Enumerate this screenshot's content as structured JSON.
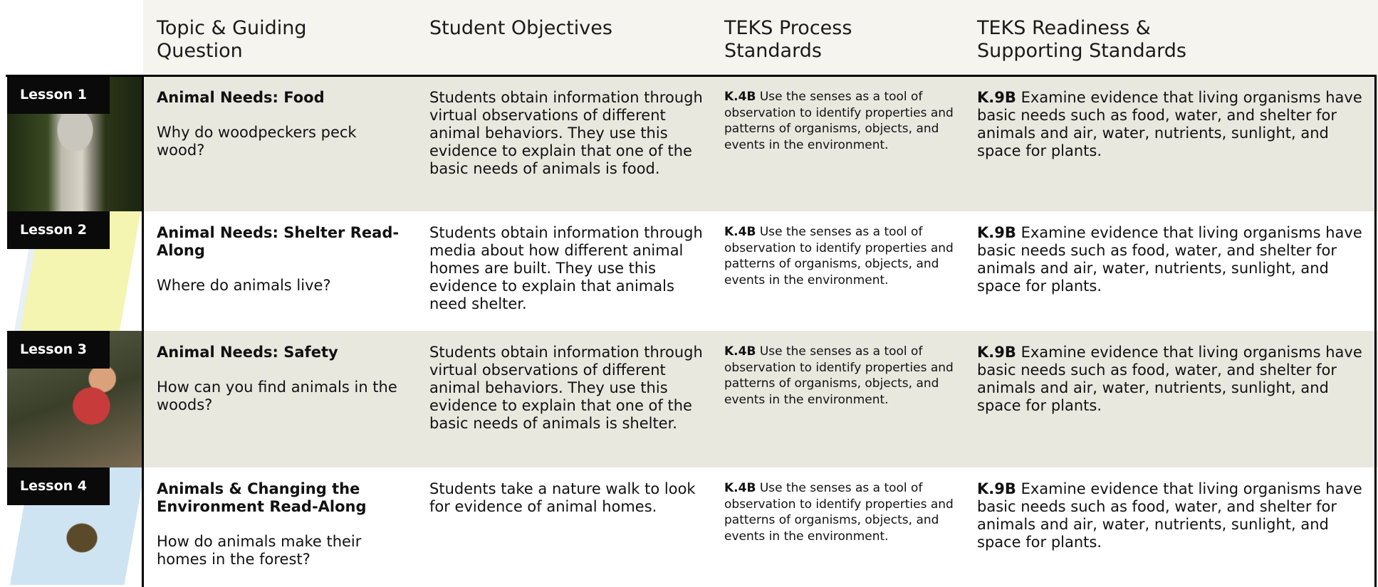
{
  "header": {
    "columns": [
      "Topic & Guiding Question",
      "Student Objectives",
      "TEKS Process Standards",
      "TEKS Readiness & Supporting Standards"
    ]
  },
  "rows": [
    {
      "lesson": "Lesson 1",
      "title": "Animal Needs: Food",
      "question": "Why do woodpeckers peck wood?",
      "objectives": "Students obtain information through virtual observations of different animal behaviors. They use this evidence to explain that one of the basic needs of animals is food.",
      "process_code": "K.4B",
      "process_text": "Use the senses as a tool of observation to identify properties and patterns of organisms, objects, and events in the environment.",
      "readiness_code": "K.9B",
      "readiness_text": "Examine evidence that living organisms have basic needs such as food, water, and shelter for animals and air, water, nutrients, sunlight, and space for plants."
    },
    {
      "lesson": "Lesson 2",
      "title": "Animal Needs: Shelter Read-Along",
      "question": "Where do animals live?",
      "objectives": "Students obtain information through media about how different animal homes are built. They use this evidence to explain that animals need shelter.",
      "process_code": "K.4B",
      "process_text": "Use the senses as a tool of observation to identify properties and patterns of organisms, objects, and events in the environment.",
      "readiness_code": "K.9B",
      "readiness_text": "Examine evidence that living organisms have basic needs such as food, water, and shelter for animals and air, water, nutrients, sunlight, and space for plants."
    },
    {
      "lesson": "Lesson 3",
      "title": "Animal Needs: Safety",
      "question": "How can you find animals in the woods?",
      "objectives": "Students obtain information through virtual observations of different animal behaviors. They use this evidence to explain that one of the basic needs of animals is shelter.",
      "process_code": "K.4B",
      "process_text": "Use the senses as a tool of observation to identify properties and patterns of organisms, objects, and events in the environment.",
      "readiness_code": "K.9B",
      "readiness_text": "Examine evidence that living organisms have basic needs such as food, water, and shelter for animals and air, water, nutrients, sunlight, and space for plants."
    },
    {
      "lesson": "Lesson 4",
      "title": "Animals & Changing the Environment Read-Along",
      "question": "How do animals make their homes in the forest?",
      "objectives": "Students take a nature walk to look for evidence of animal homes.",
      "process_code": "K.4B",
      "process_text": "Use the senses as a tool of observation to identify properties and patterns of organisms, objects, and events in the environment.",
      "readiness_code": "K.9B",
      "readiness_text": "Examine evidence that living organisms have basic needs such as food, water, and shelter for animals and air, water, nutrients, sunlight, and space for plants."
    }
  ]
}
